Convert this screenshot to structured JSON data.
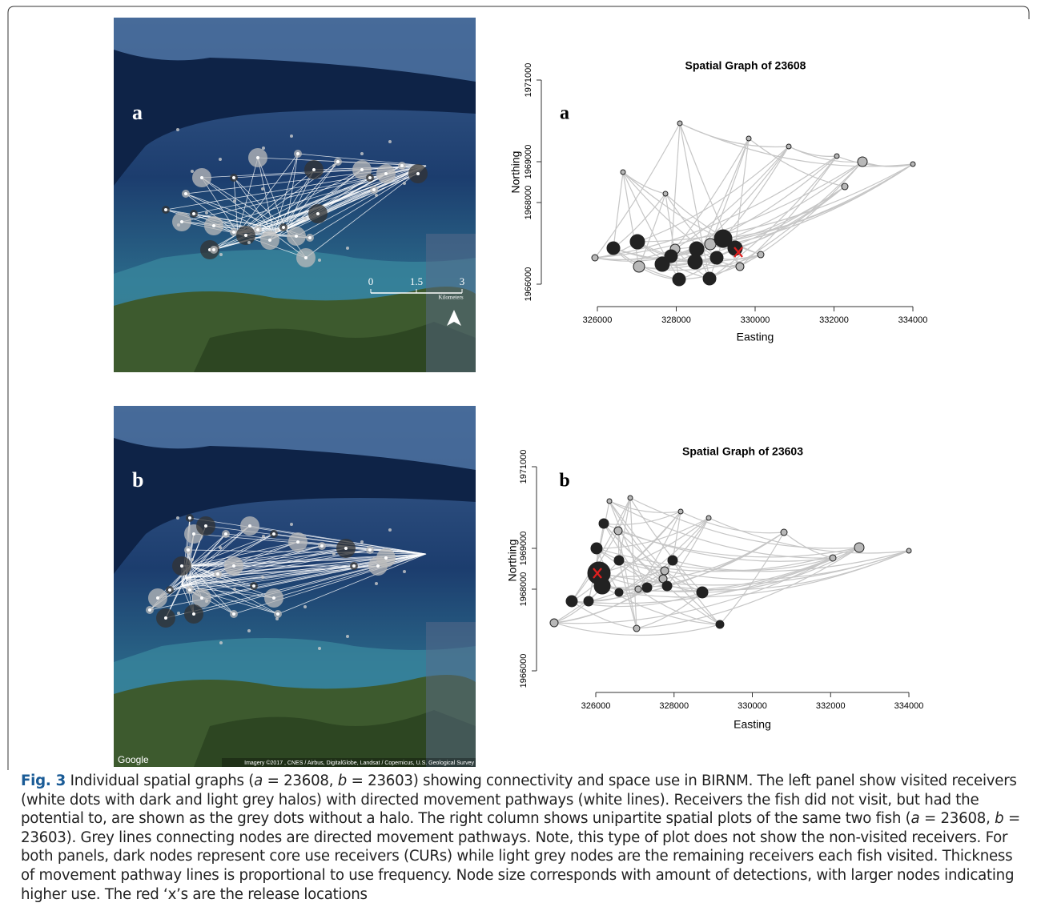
{
  "maps": [
    {
      "label": "a",
      "scale_ticks": [
        "0",
        "1.5",
        "3"
      ],
      "scale_unit": "Kilometers"
    },
    {
      "label": "b",
      "logo": "Google",
      "credit": "Imagery ©2017 , CNES / Airbus, DigitalGlobe, Landsat / Copernicus, U.S. Geological Survey"
    }
  ],
  "chart_data": [
    {
      "type": "scatter",
      "title": "Spatial Graph of 23608",
      "panel_label": "a",
      "x_label": "Easting",
      "y_label": "Northing",
      "xlim": [
        325000,
        335000
      ],
      "ylim": [
        1965500,
        1971000
      ],
      "xticks": [
        326000,
        328000,
        330000,
        332000,
        334000
      ],
      "yticks": [
        1966000,
        1968000,
        1969000,
        1971000
      ],
      "series": [
        {
          "color": "#222222",
          "x": [
            326406,
            327015,
            327645,
            327868,
            328071,
            328518,
            328477,
            328843,
            329025,
            329188,
            329492
          ],
          "y": [
            1966882,
            1967039,
            1966490,
            1966686,
            1966118,
            1966863,
            1966549,
            1966137,
            1966647,
            1967118,
            1966882
          ],
          "size": [
            8,
            9,
            9,
            8,
            8,
            9,
            9,
            8,
            8,
            11,
            9
          ]
        },
        {
          "color": "#b8b8b8",
          "x": [
            325939,
            327056,
            327970,
            328863,
            329614,
            330142,
            332721,
            332274,
            334000,
            326650,
            328091,
            329838,
            330853,
            327726,
            332071
          ],
          "y": [
            1966647,
            1966431,
            1966863,
            1966980,
            1966431,
            1966725,
            1969000,
            1968392,
            1968941,
            1968745,
            1969941,
            1969569,
            1969373,
            1968216,
            1969137
          ],
          "size": [
            4,
            7,
            6,
            7,
            5,
            4,
            6,
            4,
            3,
            3,
            3,
            3,
            3,
            3,
            3
          ]
        }
      ],
      "release": {
        "x": 329574,
        "y": 1966784,
        "color": "#e02020"
      }
    },
    {
      "type": "scatter",
      "title": "Spatial Graph of 23603",
      "panel_label": "b",
      "x_label": "Easting",
      "y_label": "Northing",
      "xlim": [
        324800,
        335000
      ],
      "ylim": [
        1965500,
        1971000
      ],
      "xticks": [
        326000,
        328000,
        330000,
        332000,
        334000
      ],
      "yticks": [
        1966000,
        1968000,
        1969000,
        1971000
      ],
      "series": [
        {
          "color": "#222222",
          "x": [
            326082,
            326164,
            325386,
            325816,
            326020,
            326205,
            326593,
            327309,
            327821,
            327964,
            328721,
            329171,
            326593
          ],
          "y": [
            1968392,
            1968078,
            1967706,
            1967706,
            1969000,
            1969608,
            1968706,
            1968039,
            1968078,
            1968706,
            1967922,
            1967137,
            1967922
          ],
          "size": [
            14,
            10,
            7,
            6,
            7,
            6,
            6,
            6,
            6,
            6,
            7,
            5,
            5
          ]
        },
        {
          "color": "#b8b8b8",
          "x": [
            324936,
            326573,
            327719,
            327760,
            330808,
            332731,
            332056,
            334000,
            326348,
            326880,
            328169,
            328885,
            327084,
            327043
          ],
          "y": [
            1967176,
            1969431,
            1968255,
            1968451,
            1969392,
            1969020,
            1968765,
            1968941,
            1970157,
            1970235,
            1969902,
            1969745,
            1968000,
            1967039
          ],
          "size": [
            5,
            5,
            5,
            5,
            4,
            6,
            4,
            3,
            3,
            3,
            3,
            3,
            4,
            4
          ]
        }
      ],
      "release": {
        "x": 326041,
        "y": 1968392,
        "color": "#e02020"
      }
    }
  ],
  "caption": {
    "label": "Fig. 3",
    "runs": [
      {
        "text": " Individual spatial graphs (",
        "italic": false
      },
      {
        "text": "a",
        "italic": true
      },
      {
        "text": " = 23608, ",
        "italic": false
      },
      {
        "text": "b",
        "italic": true
      },
      {
        "text": " = 23603) showing connectivity and space use in BIRNM. The left panel show visited receivers (white dots with dark and light grey halos) with directed movement pathways (white lines). Receivers the fish did not visit, but had the potential to, are shown as the grey dots without a halo. The right column shows unipartite spatial plots of the same two fish (",
        "italic": false
      },
      {
        "text": "a",
        "italic": true
      },
      {
        "text": " = 23608, ",
        "italic": false
      },
      {
        "text": "b",
        "italic": true
      },
      {
        "text": " = 23603). Grey lines connecting nodes are directed movement pathways. Note, this type of plot does not show the non-visited receivers. For both panels, dark nodes represent core use receivers (CURs) while light grey nodes are the remaining receivers each fish visited. Thickness of movement pathway lines is proportional to use frequency. Node size corresponds with amount of detections, with larger nodes indicating higher use. The red ‘x’s are the release locations",
        "italic": false
      }
    ]
  }
}
